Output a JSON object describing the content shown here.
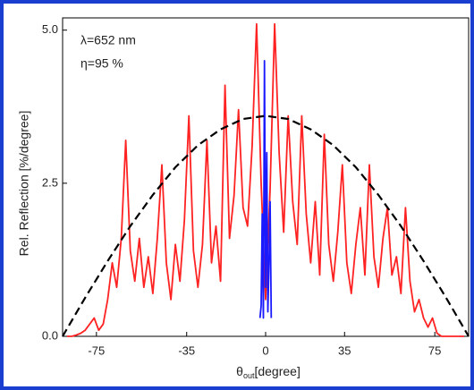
{
  "chart_data": {
    "type": "line",
    "annotations": [
      "λ=652 nm",
      "η=95 %"
    ],
    "y_label": "Rel. Reflection [%/degree]",
    "x_label": "θ",
    "x_label_sub": "out",
    "x_label_unit": "[degree]",
    "xlim": [
      -90,
      90
    ],
    "ylim": [
      0,
      5.2
    ],
    "xticks": [
      -75,
      -35,
      0,
      35,
      75
    ],
    "yticks": [
      {
        "value": 0,
        "label": "0.0"
      },
      {
        "value": 2.5,
        "label": "2.5"
      },
      {
        "value": 5,
        "label": "5.0"
      }
    ],
    "series": [
      {
        "color": "#ff2222",
        "linestyle": "solid",
        "x": [
          -88,
          -86,
          -84,
          -82,
          -80,
          -78,
          -76,
          -74,
          -72,
          -70,
          -68,
          -66,
          -64,
          -62,
          -60,
          -58,
          -56,
          -54,
          -52,
          -50,
          -48,
          -46,
          -44,
          -42,
          -40,
          -38,
          -36,
          -34,
          -32,
          -30,
          -28,
          -26,
          -24,
          -22,
          -20,
          -18,
          -16,
          -14,
          -12,
          -10,
          -8,
          -6,
          -4,
          -2,
          0,
          2,
          4,
          6,
          8,
          10,
          12,
          14,
          16,
          18,
          20,
          22,
          24,
          26,
          28,
          30,
          32,
          34,
          36,
          38,
          40,
          42,
          44,
          46,
          48,
          50,
          52,
          54,
          56,
          58,
          60,
          62,
          64,
          66,
          68,
          70,
          72,
          74,
          76,
          78,
          80,
          82,
          84,
          86,
          88
        ],
        "values": [
          0,
          0,
          0.02,
          0.05,
          0.1,
          0.2,
          0.3,
          0.1,
          0.2,
          0.6,
          1.2,
          0.8,
          1.6,
          3.2,
          1.4,
          0.9,
          1.6,
          0.8,
          1.3,
          0.7,
          1.6,
          2.8,
          1.2,
          0.6,
          1.5,
          0.9,
          1.9,
          3.6,
          1.4,
          0.8,
          1.5,
          3.2,
          1.2,
          1.8,
          0.9,
          4.1,
          1.6,
          2.3,
          3.7,
          2.1,
          1.8,
          3.1,
          5.1,
          2.5,
          0.6,
          2.4,
          5.1,
          3.0,
          1.7,
          3.6,
          2.2,
          1.5,
          3.6,
          2.0,
          1.2,
          2.2,
          1.0,
          3.3,
          1.5,
          0.9,
          1.7,
          2.8,
          1.2,
          0.7,
          1.5,
          2.1,
          1.0,
          2.8,
          1.3,
          0.8,
          1.6,
          2.1,
          1.0,
          1.3,
          0.7,
          2.1,
          0.9,
          0.4,
          0.6,
          0.3,
          0.15,
          0.3,
          0.05,
          0,
          0,
          0,
          0,
          0,
          0
        ]
      },
      {
        "color": "#1a1aff",
        "linestyle": "solid",
        "x": [
          -2.5,
          -2,
          -1.5,
          -1,
          -0.5,
          0,
          0.5,
          1,
          1.5,
          2,
          2.5
        ],
        "values": [
          0.3,
          0.5,
          2.0,
          0.3,
          4.5,
          0.8,
          3.0,
          0.4,
          1.2,
          2.2,
          0.3
        ]
      },
      {
        "color": "#000000",
        "linestyle": "dashed",
        "x": [
          -90,
          -80,
          -70,
          -60,
          -50,
          -40,
          -30,
          -20,
          -10,
          0,
          10,
          20,
          30,
          40,
          50,
          60,
          70,
          80,
          90
        ],
        "values": [
          0,
          0.63,
          1.23,
          1.8,
          2.31,
          2.76,
          3.12,
          3.38,
          3.55,
          3.6,
          3.55,
          3.38,
          3.12,
          2.76,
          2.31,
          1.8,
          1.23,
          0.63,
          0
        ]
      }
    ]
  }
}
